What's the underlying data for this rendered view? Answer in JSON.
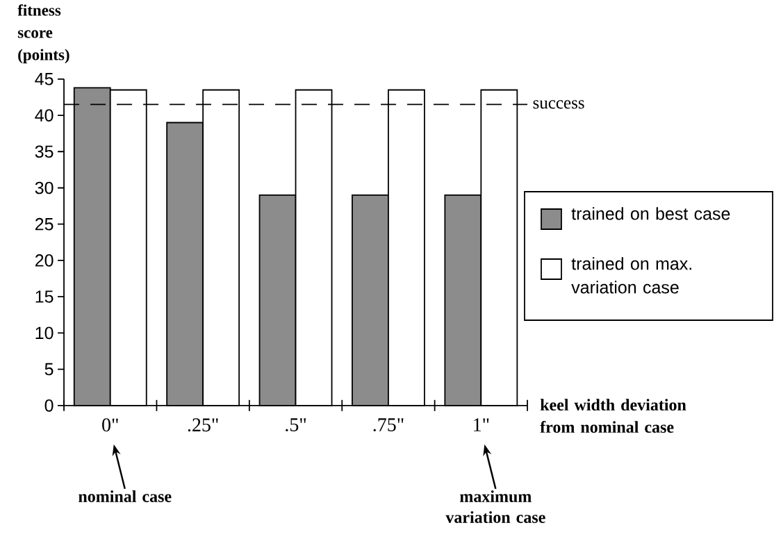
{
  "chart_data": {
    "type": "bar",
    "ylabel": "fitness score (points)",
    "xlabel": "keel width deviation from nominal case",
    "categories": [
      "0\"",
      ".25\"",
      ".5\"",
      ".75\"",
      "1\""
    ],
    "series": [
      {
        "name": "trained on best case",
        "color": "#8c8c8c",
        "values": [
          43.8,
          39,
          29,
          29,
          29
        ]
      },
      {
        "name": "trained on max. variation case",
        "color": "#ffffff",
        "values": [
          43.5,
          43.5,
          43.5,
          43.5,
          43.5
        ]
      }
    ],
    "ylim": [
      0,
      45
    ],
    "yticks": [
      0,
      5,
      10,
      15,
      20,
      25,
      30,
      35,
      40,
      45
    ],
    "ref_lines": [
      {
        "axis": "y",
        "value": 41.5,
        "label": "success",
        "color": "#000000",
        "line_style": "dashed"
      }
    ],
    "annotations": [
      "nominal case",
      "maximum variation case"
    ],
    "legend": "right",
    "grid": false
  }
}
